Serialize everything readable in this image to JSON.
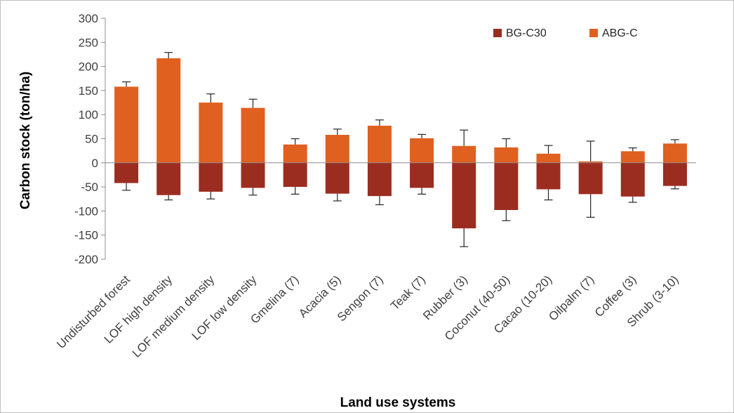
{
  "chart_data": {
    "type": "bar",
    "title": "",
    "xlabel": "Land use systems",
    "ylabel": "Carbon stock (ton/ha)",
    "ylim": [
      -200,
      300
    ],
    "yticks": [
      300,
      250,
      200,
      150,
      100,
      50,
      0,
      -50,
      -100,
      -150,
      -200
    ],
    "legend_position": "top-right",
    "grid": false,
    "categories": [
      "Undisturbed forest",
      "LOF high density",
      "LOF medium density",
      "LOF low density",
      "Gmelina (7)",
      "Acacia (5)",
      "Sengon (7)",
      "Teak (7)",
      "Rubber (3)",
      "Coconut (40-50)",
      "Cacao (10-20)",
      "Oilpalm (7)",
      "Coffee (3)",
      "Shrub (3-10)"
    ],
    "series": [
      {
        "name": "BG-C30",
        "color": "#9b2d20",
        "values": [
          -42,
          -67,
          -60,
          -52,
          -50,
          -64,
          -69,
          -52,
          -136,
          -98,
          -55,
          -65,
          -70,
          -48
        ],
        "error": [
          15,
          10,
          15,
          15,
          15,
          15,
          18,
          13,
          38,
          22,
          22,
          48,
          12,
          6
        ]
      },
      {
        "name": "ABG-C",
        "color": "#e06020",
        "values": [
          158,
          217,
          125,
          114,
          38,
          58,
          77,
          51,
          35,
          32,
          19,
          3,
          24,
          40
        ],
        "error": [
          10,
          12,
          18,
          18,
          12,
          12,
          12,
          8,
          33,
          18,
          17,
          42,
          7,
          8
        ]
      }
    ]
  }
}
